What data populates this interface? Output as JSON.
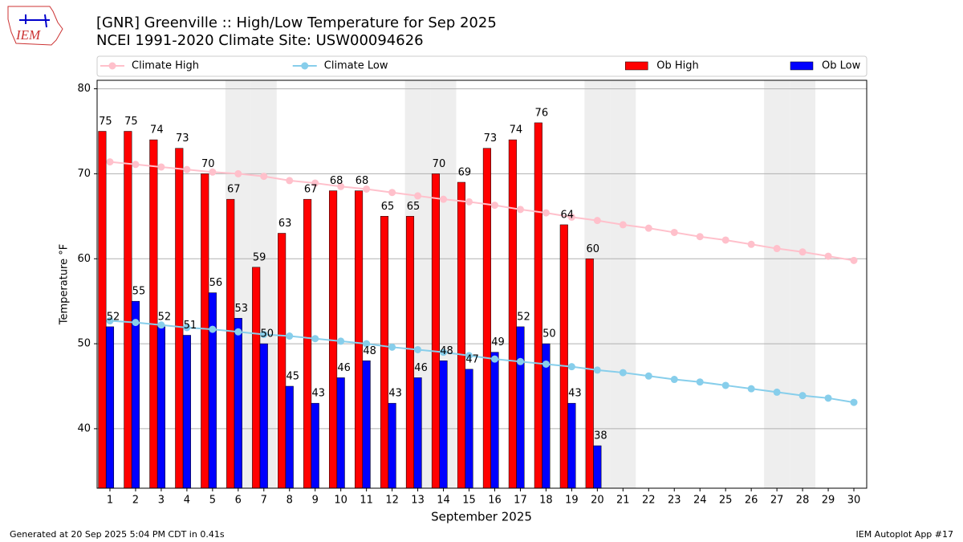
{
  "chart_data": {
    "type": "bar",
    "title": "[GNR] Greenville :: High/Low Temperature for Sep 2025",
    "subtitle": "NCEI 1991-2020 Climate Site: USW00094626",
    "x_label": "September 2025",
    "y_label": "Temperature °F",
    "logo_text": "IEM",
    "footer_left": "Generated at 20 Sep 2025 5:04 PM CDT in 0.41s",
    "footer_right": "IEM Autoplot App #17",
    "x": [
      1,
      2,
      3,
      4,
      5,
      6,
      7,
      8,
      9,
      10,
      11,
      12,
      13,
      14,
      15,
      16,
      17,
      18,
      19,
      20,
      21,
      22,
      23,
      24,
      25,
      26,
      27,
      28,
      29,
      30
    ],
    "xlim": [
      0.5,
      30.5
    ],
    "xticks": [
      1,
      2,
      3,
      4,
      5,
      6,
      7,
      8,
      9,
      10,
      11,
      12,
      13,
      14,
      15,
      16,
      17,
      18,
      19,
      20,
      21,
      22,
      23,
      24,
      25,
      26,
      27,
      28,
      29,
      30
    ],
    "ylim": [
      33,
      81
    ],
    "yticks": [
      40,
      50,
      60,
      70,
      80
    ],
    "grid": true,
    "shaded_days": [
      6,
      7,
      13,
      14,
      20,
      21,
      27,
      28
    ],
    "series": [
      {
        "name": "Climate High",
        "type": "line",
        "color": "#ffc0cb",
        "values": [
          71.4,
          71.1,
          70.8,
          70.5,
          70.2,
          70.0,
          69.7,
          69.2,
          68.9,
          68.5,
          68.2,
          67.8,
          67.4,
          67.0,
          66.7,
          66.3,
          65.8,
          65.4,
          64.9,
          64.5,
          64.0,
          63.6,
          63.1,
          62.6,
          62.2,
          61.7,
          61.2,
          60.8,
          60.3,
          59.8
        ]
      },
      {
        "name": "Climate Low",
        "type": "line",
        "color": "#87ceeb",
        "values": [
          52.7,
          52.5,
          52.2,
          51.9,
          51.7,
          51.4,
          51.1,
          50.9,
          50.6,
          50.3,
          50.0,
          49.6,
          49.3,
          49.0,
          48.6,
          48.2,
          47.9,
          47.6,
          47.3,
          46.9,
          46.6,
          46.2,
          45.8,
          45.5,
          45.1,
          44.7,
          44.3,
          43.9,
          43.6,
          43.1
        ]
      },
      {
        "name": "Ob High",
        "type": "bar",
        "color": "#ff0000",
        "values": [
          75,
          75,
          74,
          73,
          70,
          67,
          59,
          63,
          67,
          68,
          68,
          65,
          65,
          70,
          69,
          73,
          74,
          76,
          64,
          60,
          null,
          null,
          null,
          null,
          null,
          null,
          null,
          null,
          null,
          null
        ]
      },
      {
        "name": "Ob Low",
        "type": "bar",
        "color": "#0000ff",
        "values": [
          52,
          55,
          52,
          51,
          56,
          53,
          50,
          45,
          43,
          46,
          48,
          43,
          46,
          48,
          47,
          49,
          52,
          50,
          43,
          38,
          null,
          null,
          null,
          null,
          null,
          null,
          null,
          null,
          null,
          null
        ]
      }
    ]
  }
}
